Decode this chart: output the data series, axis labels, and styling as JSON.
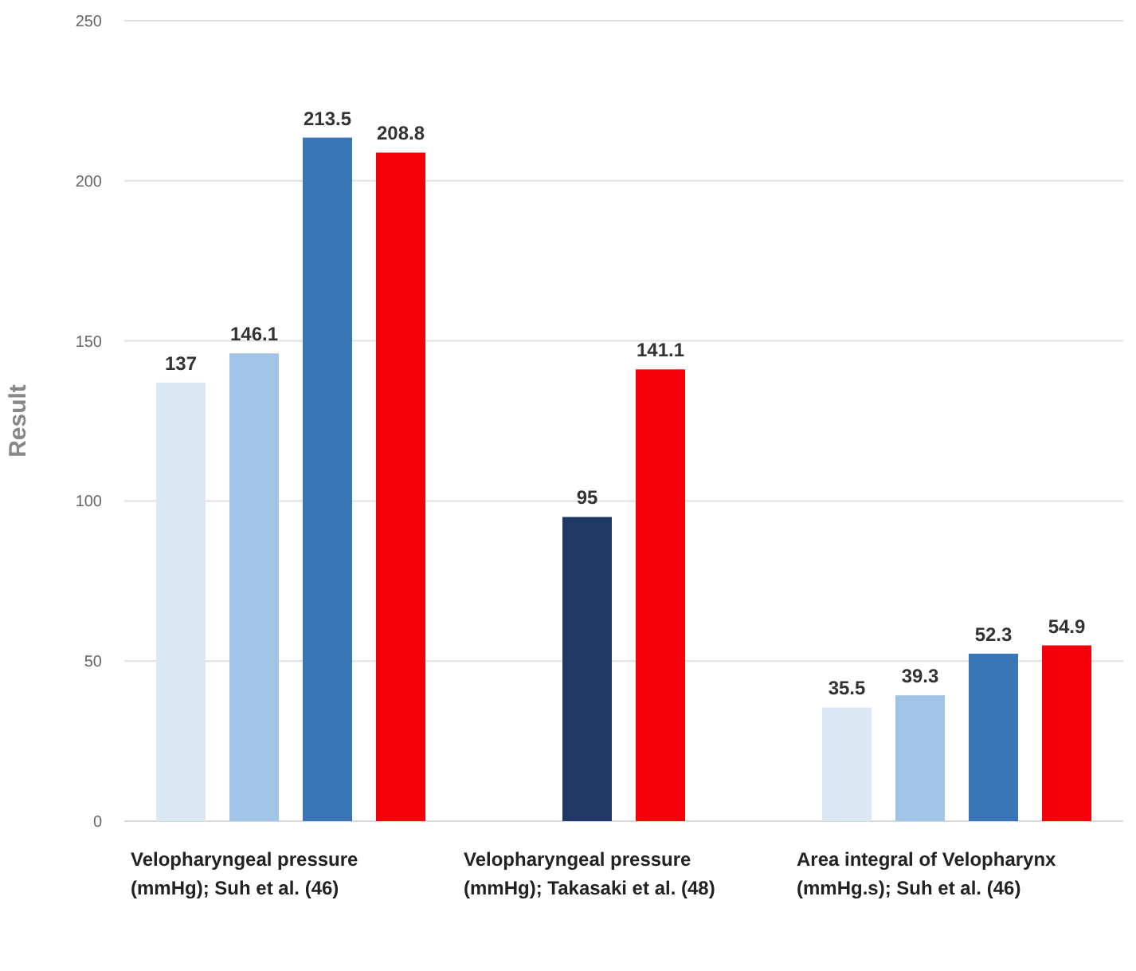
{
  "chart_data": {
    "type": "bar",
    "ylabel": "Result",
    "categories": [
      "Velopharyngeal pressure (mmHg); Suh et al. (46)",
      "Velopharyngeal pressure (mmHg); Takasaki et al. (48)",
      "Area integral of Velopharynx (mmHg.s); Suh et al. (46)"
    ],
    "series": [
      {
        "color": "#dde8f5",
        "values": [
          137,
          null,
          35.5
        ]
      },
      {
        "color": "#a1c3e6",
        "values": [
          146.1,
          null,
          39.3
        ]
      },
      {
        "color": "#3a75b5",
        "values": [
          213.5,
          null,
          52.3
        ]
      },
      {
        "color": "#203864",
        "values": [
          null,
          95,
          null
        ]
      },
      {
        "color": "#f5000a",
        "values": [
          208.8,
          141.1,
          54.9
        ]
      }
    ],
    "ylim": [
      0,
      250
    ],
    "yticks": [
      0,
      50,
      100,
      150,
      200,
      250
    ],
    "grid": "y",
    "data_labels": true
  }
}
